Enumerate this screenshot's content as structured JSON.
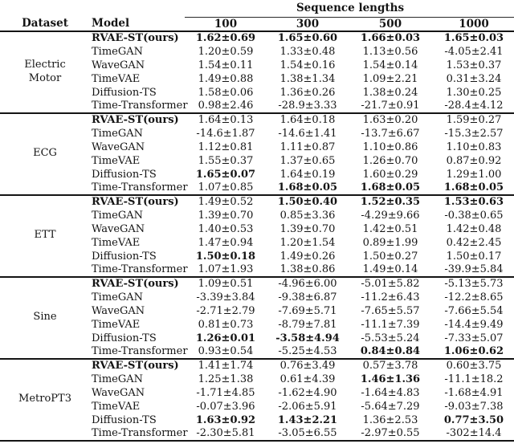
{
  "table": {
    "header": {
      "group_label": "Sequence lengths",
      "dataset_col": "Dataset",
      "model_col": "Model",
      "seq_cols": [
        "100",
        "300",
        "500",
        "1000"
      ]
    },
    "blocks": [
      {
        "dataset": "Electric\nMotor",
        "rows": [
          {
            "model": "RVAE-ST(ours)",
            "model_bold": true,
            "values": [
              {
                "text": "1.62±0.69",
                "bold": true
              },
              {
                "text": "1.65±0.60",
                "bold": true
              },
              {
                "text": "1.66±0.03",
                "bold": true
              },
              {
                "text": "1.65±0.03",
                "bold": true
              }
            ]
          },
          {
            "model": "TimeGAN",
            "values": [
              {
                "text": "1.20±0.59"
              },
              {
                "text": "1.33±0.48"
              },
              {
                "text": "1.13±0.56"
              },
              {
                "text": "-4.05±2.41"
              }
            ]
          },
          {
            "model": "WaveGAN",
            "values": [
              {
                "text": "1.54±0.11"
              },
              {
                "text": "1.54±0.16"
              },
              {
                "text": "1.54±0.14"
              },
              {
                "text": "1.53±0.37"
              }
            ]
          },
          {
            "model": "TimeVAE",
            "values": [
              {
                "text": "1.49±0.88"
              },
              {
                "text": "1.38±1.34"
              },
              {
                "text": "1.09±2.21"
              },
              {
                "text": "0.31±3.24"
              }
            ]
          },
          {
            "model": "Diffusion-TS",
            "values": [
              {
                "text": "1.58±0.06"
              },
              {
                "text": "1.36±0.26"
              },
              {
                "text": "1.38±0.24"
              },
              {
                "text": "1.30±0.25"
              }
            ]
          },
          {
            "model": "Time-Transformer",
            "values": [
              {
                "text": "0.98±2.46"
              },
              {
                "text": "-28.9±3.33"
              },
              {
                "text": "-21.7±0.91"
              },
              {
                "text": "-28.4±4.12"
              }
            ]
          }
        ]
      },
      {
        "dataset": "ECG",
        "rows": [
          {
            "model": "RVAE-ST(ours)",
            "model_bold": true,
            "values": [
              {
                "text": "1.64±0.13"
              },
              {
                "text": "1.64±0.18"
              },
              {
                "text": "1.63±0.20"
              },
              {
                "text": "1.59±0.27"
              }
            ]
          },
          {
            "model": "TimeGAN",
            "values": [
              {
                "text": "-14.6±1.87"
              },
              {
                "text": "-14.6±1.41"
              },
              {
                "text": "-13.7±6.67"
              },
              {
                "text": "-15.3±2.57"
              }
            ]
          },
          {
            "model": "WaveGAN",
            "values": [
              {
                "text": "1.12±0.81"
              },
              {
                "text": "1.11±0.87"
              },
              {
                "text": "1.10±0.86"
              },
              {
                "text": "1.10±0.83"
              }
            ]
          },
          {
            "model": "TimeVAE",
            "values": [
              {
                "text": "1.55±0.37"
              },
              {
                "text": "1.37±0.65"
              },
              {
                "text": "1.26±0.70"
              },
              {
                "text": "0.87±0.92"
              }
            ]
          },
          {
            "model": "Diffusion-TS",
            "values": [
              {
                "text": "1.65±0.07",
                "bold": true
              },
              {
                "text": "1.64±0.19"
              },
              {
                "text": "1.60±0.29"
              },
              {
                "text": "1.29±1.00"
              }
            ]
          },
          {
            "model": "Time-Transformer",
            "values": [
              {
                "text": "1.07±0.85"
              },
              {
                "text": "1.68±0.05",
                "bold": true
              },
              {
                "text": "1.68±0.05",
                "bold": true
              },
              {
                "text": "1.68±0.05",
                "bold": true
              }
            ]
          }
        ]
      },
      {
        "dataset": "ETT",
        "rows": [
          {
            "model": "RVAE-ST(ours)",
            "model_bold": true,
            "values": [
              {
                "text": "1.49±0.52"
              },
              {
                "text": "1.50±0.40",
                "bold": true
              },
              {
                "text": "1.52±0.35",
                "bold": true
              },
              {
                "text": "1.53±0.63",
                "bold": true
              }
            ]
          },
          {
            "model": "TimeGAN",
            "values": [
              {
                "text": "1.39±0.70"
              },
              {
                "text": "0.85±3.36"
              },
              {
                "text": "-4.29±9.66"
              },
              {
                "text": "-0.38±0.65"
              }
            ]
          },
          {
            "model": "WaveGAN",
            "values": [
              {
                "text": "1.40±0.53"
              },
              {
                "text": "1.39±0.70"
              },
              {
                "text": "1.42±0.51"
              },
              {
                "text": "1.42±0.48"
              }
            ]
          },
          {
            "model": "TimeVAE",
            "values": [
              {
                "text": "1.47±0.94"
              },
              {
                "text": "1.20±1.54"
              },
              {
                "text": "0.89±1.99"
              },
              {
                "text": "0.42±2.45"
              }
            ]
          },
          {
            "model": "Diffusion-TS",
            "values": [
              {
                "text": "1.50±0.18",
                "bold": true
              },
              {
                "text": "1.49±0.26"
              },
              {
                "text": "1.50±0.27"
              },
              {
                "text": "1.50±0.17"
              }
            ]
          },
          {
            "model": "Time-Transformer",
            "values": [
              {
                "text": "1.07±1.93"
              },
              {
                "text": "1.38±0.86"
              },
              {
                "text": "1.49±0.14"
              },
              {
                "text": "-39.9±5.84"
              }
            ]
          }
        ]
      },
      {
        "dataset": "Sine",
        "rows": [
          {
            "model": "RVAE-ST(ours)",
            "model_bold": true,
            "values": [
              {
                "text": "1.09±0.51"
              },
              {
                "text": "-4.96±6.00"
              },
              {
                "text": "-5.01±5.82"
              },
              {
                "text": "-5.13±5.73"
              }
            ]
          },
          {
            "model": "TimeGAN",
            "values": [
              {
                "text": "-3.39±3.84"
              },
              {
                "text": "-9.38±6.87"
              },
              {
                "text": "-11.2±6.43"
              },
              {
                "text": "-12.2±8.65"
              }
            ]
          },
          {
            "model": "WaveGAN",
            "values": [
              {
                "text": "-2.71±2.79"
              },
              {
                "text": "-7.69±5.71"
              },
              {
                "text": "-7.65±5.57"
              },
              {
                "text": "-7.66±5.54"
              }
            ]
          },
          {
            "model": "TimeVAE",
            "values": [
              {
                "text": "0.81±0.73"
              },
              {
                "text": "-8.79±7.81"
              },
              {
                "text": "-11.1±7.39"
              },
              {
                "text": "-14.4±9.49"
              }
            ]
          },
          {
            "model": "Diffusion-TS",
            "values": [
              {
                "text": "1.26±0.01",
                "bold": true
              },
              {
                "text": "-3.58±4.94",
                "bold": true
              },
              {
                "text": "-5.53±5.24"
              },
              {
                "text": "-7.33±5.07"
              }
            ]
          },
          {
            "model": "Time-Transformer",
            "values": [
              {
                "text": "0.93±0.54"
              },
              {
                "text": "-5.25±4.53"
              },
              {
                "text": "0.84±0.84",
                "bold": true
              },
              {
                "text": "1.06±0.62",
                "bold": true
              }
            ]
          }
        ]
      },
      {
        "dataset": "MetroPT3",
        "rows": [
          {
            "model": "RVAE-ST(ours)",
            "model_bold": true,
            "values": [
              {
                "text": "1.41±1.74"
              },
              {
                "text": "0.76±3.49"
              },
              {
                "text": "0.57±3.78"
              },
              {
                "text": "0.60±3.75"
              }
            ]
          },
          {
            "model": "TimeGAN",
            "values": [
              {
                "text": "1.25±1.38"
              },
              {
                "text": "0.61±4.39"
              },
              {
                "text": "1.46±1.36",
                "bold": true
              },
              {
                "text": "-11.1±18.2"
              }
            ]
          },
          {
            "model": "WaveGAN",
            "values": [
              {
                "text": "-1.71±4.85"
              },
              {
                "text": "-1.62±4.90"
              },
              {
                "text": "-1.64±4.83"
              },
              {
                "text": "-1.68±4.91"
              }
            ]
          },
          {
            "model": "TimeVAE",
            "values": [
              {
                "text": "-0.07±3.96"
              },
              {
                "text": "-2.06±5.91"
              },
              {
                "text": "-5.64±7.29"
              },
              {
                "text": "-9.03±7.38"
              }
            ]
          },
          {
            "model": "Diffusion-TS",
            "values": [
              {
                "text": "1.63±0.92",
                "bold": true
              },
              {
                "text": "1.43±2.21",
                "bold": true
              },
              {
                "text": "1.36±2.53"
              },
              {
                "text": "0.77±3.50",
                "bold": true
              }
            ]
          },
          {
            "model": "Time-Transformer",
            "values": [
              {
                "text": "-2.30±5.81"
              },
              {
                "text": "-3.05±6.55"
              },
              {
                "text": "-2.97±0.55"
              },
              {
                "text": "-302±14.4"
              }
            ]
          }
        ]
      }
    ]
  }
}
